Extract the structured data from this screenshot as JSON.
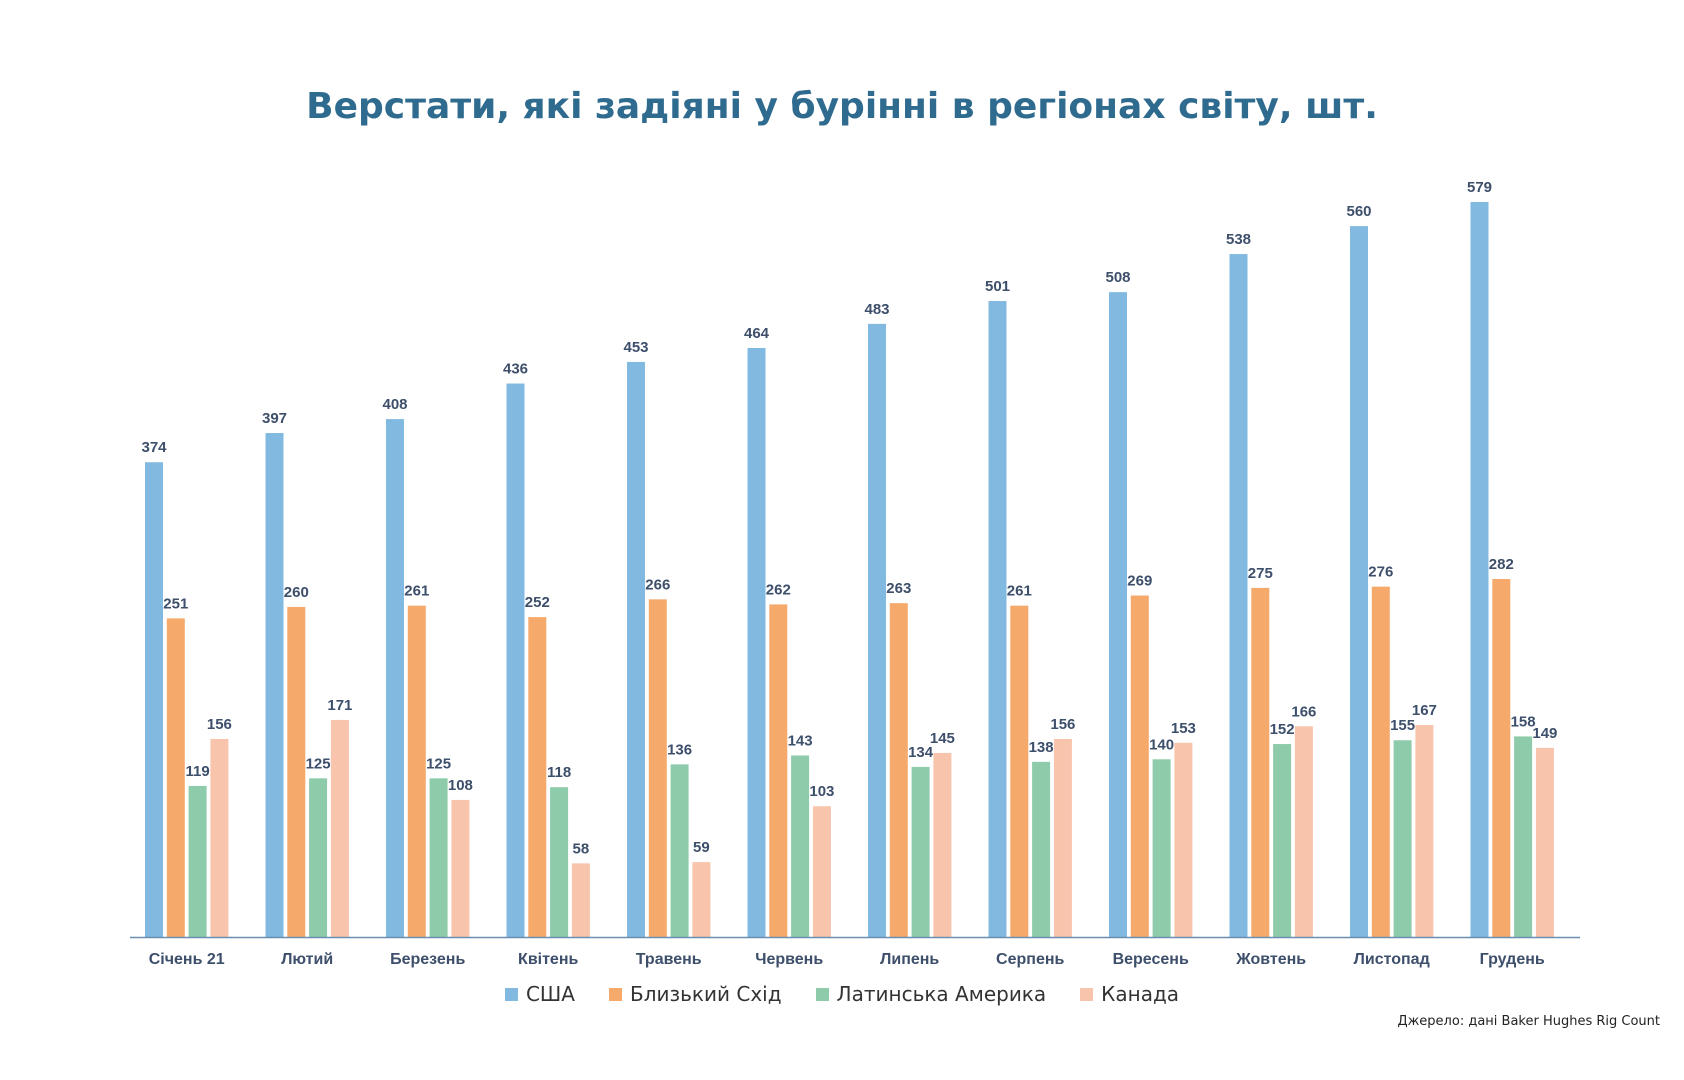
{
  "title": "Верстати, які задіяні у бурінні в регіонах світу, шт.",
  "source": "Джерело: дані Baker Hughes Rig Count",
  "colors": {
    "title": "#2e6b8f",
    "labels": "#3d4f6b",
    "axis": "#6a8fb0"
  },
  "chart_data": {
    "type": "bar",
    "categories": [
      "Січень 21",
      "Лютий",
      "Березень",
      "Квітень",
      "Травень",
      "Червень",
      "Липень",
      "Серпень",
      "Вересень",
      "Жовтень",
      "Листопад",
      "Грудень"
    ],
    "series": [
      {
        "name": "США",
        "color": "#82b9e0",
        "values": [
          374,
          397,
          408,
          436,
          453,
          464,
          483,
          501,
          508,
          538,
          560,
          579
        ]
      },
      {
        "name": "Близький Схід",
        "color": "#f5a96b",
        "values": [
          251,
          260,
          261,
          252,
          266,
          262,
          263,
          261,
          269,
          275,
          276,
          282
        ]
      },
      {
        "name": "Латинська Америка",
        "color": "#8ecbab",
        "values": [
          119,
          125,
          125,
          118,
          136,
          143,
          134,
          138,
          140,
          152,
          155,
          158
        ]
      },
      {
        "name": "Канада",
        "color": "#f8c4ac",
        "values": [
          156,
          171,
          108,
          58,
          59,
          103,
          145,
          156,
          153,
          166,
          167,
          149
        ]
      }
    ],
    "ylim": [
      0,
      600
    ],
    "data_labels": true,
    "grid": false,
    "legend": "bottom-center"
  }
}
